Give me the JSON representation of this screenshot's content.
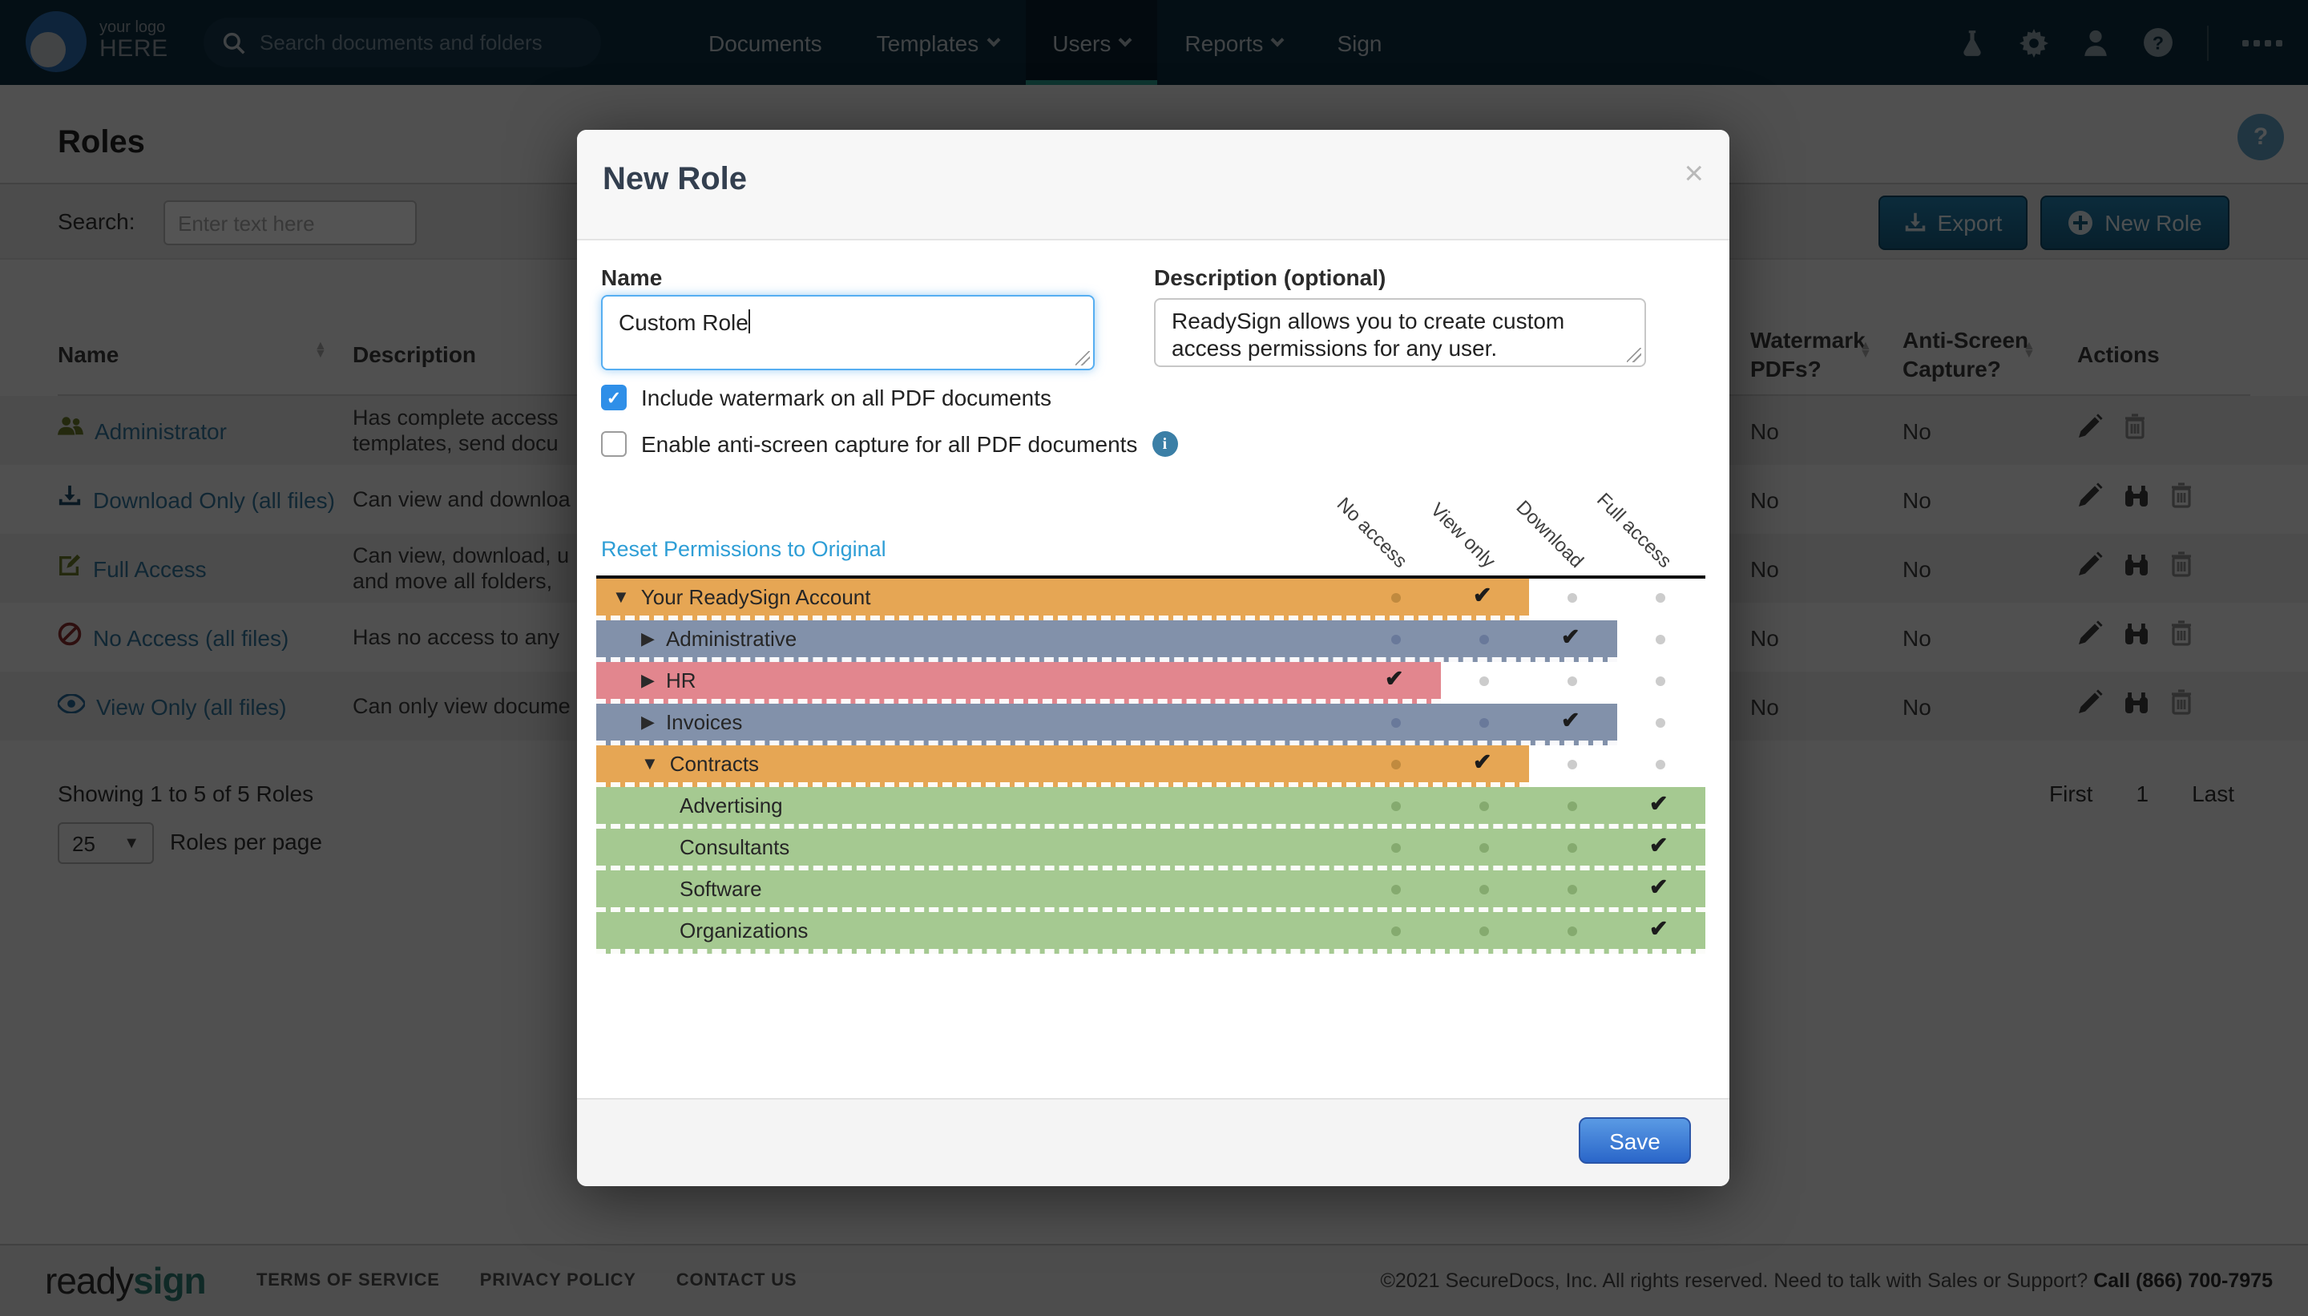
{
  "navbar": {
    "logo_line1": "your logo",
    "logo_line2": "HERE",
    "search_placeholder": "Search documents and folders",
    "items": [
      {
        "label": "Documents",
        "dropdown": false,
        "active": false
      },
      {
        "label": "Templates",
        "dropdown": true,
        "active": false
      },
      {
        "label": "Users",
        "dropdown": true,
        "active": true
      },
      {
        "label": "Reports",
        "dropdown": true,
        "active": false
      },
      {
        "label": "Sign",
        "dropdown": false,
        "active": false
      }
    ],
    "icons": [
      "flask-icon",
      "gear-icon",
      "user-icon",
      "help-icon",
      "grid-icon"
    ]
  },
  "page": {
    "title": "Roles",
    "help_glyph": "?",
    "search_label": "Search:",
    "search_placeholder": "Enter text here",
    "export_label": "Export",
    "new_role_label": "New Role",
    "table": {
      "col_name": "Name",
      "col_description": "Description",
      "col_watermark_l1": "Watermark",
      "col_watermark_l2": "PDFs?",
      "col_antiscreen_l1": "Anti-Screen",
      "col_antiscreen_l2": "Capture?",
      "col_actions": "Actions",
      "rows": [
        {
          "name": "Administrator",
          "icon": "users-icon",
          "desc_lines": [
            "Has complete access",
            "templates, send docu"
          ],
          "watermark": "No",
          "anti_screen": "No",
          "actions": [
            "edit",
            "delete"
          ],
          "striped": true
        },
        {
          "name": "Download Only (all files)",
          "icon": "download-icon",
          "desc_lines": [
            "Can view and downloa"
          ],
          "watermark": "No",
          "anti_screen": "No",
          "actions": [
            "edit",
            "view",
            "delete"
          ],
          "striped": false
        },
        {
          "name": "Full Access",
          "icon": "edit-square-icon",
          "desc_lines": [
            "Can view, download, u",
            "and move all folders,"
          ],
          "watermark": "No",
          "anti_screen": "No",
          "actions": [
            "edit",
            "view",
            "delete"
          ],
          "striped": true
        },
        {
          "name": "No Access (all files)",
          "icon": "ban-icon",
          "desc_lines": [
            "Has no access to any"
          ],
          "watermark": "No",
          "anti_screen": "No",
          "actions": [
            "edit",
            "view",
            "delete"
          ],
          "striped": false
        },
        {
          "name": "View Only (all files)",
          "icon": "eye-icon",
          "desc_lines": [
            "Can only view docume"
          ],
          "watermark": "No",
          "anti_screen": "No",
          "actions": [
            "edit",
            "view",
            "delete"
          ],
          "striped": true
        }
      ]
    },
    "summary": "Showing 1 to 5 of 5 Roles",
    "per_page_value": "25",
    "per_page_label": "Roles per page",
    "pagination": [
      "First",
      "1",
      "Last"
    ]
  },
  "modal": {
    "title": "New Role",
    "close_glyph": "×",
    "name_label": "Name",
    "name_value": "Custom Role",
    "desc_label": "Description (optional)",
    "desc_value_line1": "ReadySign allows you to create custom",
    "desc_value_line2": "access permissions for any user.",
    "checkbox_watermark": {
      "label": "Include watermark on all PDF documents",
      "checked": true
    },
    "checkbox_antiscreen": {
      "label": "Enable anti-screen capture for all PDF documents",
      "checked": false
    },
    "reset_link": "Reset Permissions to Original",
    "columns": [
      "No access",
      "View only",
      "Download",
      "Full access"
    ],
    "tree": [
      {
        "label": "Your ReadySign Account",
        "expander": "expanded",
        "color": "orange",
        "level": 0,
        "access": "view"
      },
      {
        "label": "Administrative",
        "expander": "collapsed",
        "color": "slate",
        "level": 1,
        "access": "download"
      },
      {
        "label": "HR",
        "expander": "collapsed",
        "color": "red",
        "level": 1,
        "access": "no"
      },
      {
        "label": "Invoices",
        "expander": "collapsed",
        "color": "slate",
        "level": 1,
        "access": "download"
      },
      {
        "label": "Contracts",
        "expander": "expanded",
        "color": "orange",
        "level": 1,
        "access": "view"
      },
      {
        "label": "Advertising",
        "expander": "none",
        "color": "green",
        "level": 2,
        "access": "full"
      },
      {
        "label": "Consultants",
        "expander": "none",
        "color": "green",
        "level": 2,
        "access": "full"
      },
      {
        "label": "Software",
        "expander": "none",
        "color": "green",
        "level": 2,
        "access": "full"
      },
      {
        "label": "Organizations",
        "expander": "none",
        "color": "green",
        "level": 2,
        "access": "full"
      }
    ],
    "save_label": "Save"
  },
  "footer": {
    "logo_ready": "ready",
    "logo_sign": "sign",
    "links": [
      "TERMS OF SERVICE",
      "PRIVACY POLICY",
      "CONTACT US"
    ],
    "copyright": "©2021 SecureDocs, Inc. All rights reserved. Need to talk with Sales or Support?",
    "phone": "Call (866) 700-7975"
  },
  "colors": {
    "navbar_bg": "#0e2f40",
    "active_tab_underline": "#2d9e8f",
    "row_orange": "#e6a654",
    "row_slate": "#8291aa",
    "row_red": "#e2868e",
    "row_green": "#a5c991",
    "checkbox_checked": "#2f8fe8",
    "save_button": "#2a66c9",
    "link_blue": "#2e9ed6"
  }
}
